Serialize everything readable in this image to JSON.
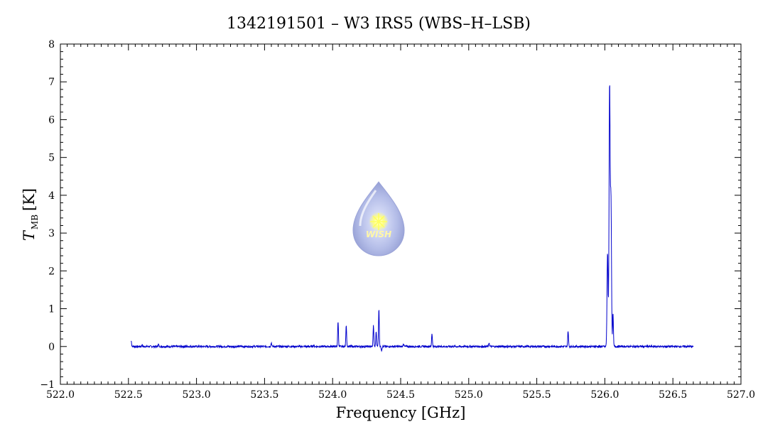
{
  "chart_data": {
    "type": "line",
    "title": "1342191501 – W3 IRS5 (WBS–H–LSB)",
    "xlabel": "Frequency [GHz]",
    "ylabel_main": "T",
    "ylabel_sub": "MB",
    "ylabel_unit": "[K]",
    "xlim": [
      522.0,
      527.0
    ],
    "ylim": [
      -1,
      8
    ],
    "xticks": [
      "522.0",
      "522.5",
      "523.0",
      "523.5",
      "524.0",
      "524.5",
      "525.0",
      "525.5",
      "526.0",
      "526.5",
      "527.0"
    ],
    "yticks": [
      "−1",
      "0",
      "1",
      "2",
      "3",
      "4",
      "5",
      "6",
      "7",
      "8"
    ],
    "grid": false,
    "line_color": "#0000cc",
    "series": [
      {
        "x_range": [
          522.52,
          526.65
        ],
        "baseline": 0.0,
        "peaks": [
          {
            "x": 522.52,
            "y": 0.15
          },
          {
            "x": 522.6,
            "y": 0.04
          },
          {
            "x": 522.72,
            "y": 0.06
          },
          {
            "x": 523.55,
            "y": 0.1
          },
          {
            "x": 523.86,
            "y": 0.03
          },
          {
            "x": 524.04,
            "y": 0.67
          },
          {
            "x": 524.1,
            "y": 0.58
          },
          {
            "x": 524.3,
            "y": 0.55
          },
          {
            "x": 524.32,
            "y": 0.4
          },
          {
            "x": 524.34,
            "y": 1.0
          },
          {
            "x": 524.36,
            "y": -0.1
          },
          {
            "x": 524.52,
            "y": 0.08
          },
          {
            "x": 524.73,
            "y": 0.35
          },
          {
            "x": 525.15,
            "y": 0.1
          },
          {
            "x": 525.73,
            "y": 0.42
          },
          {
            "x": 526.02,
            "y": 2.5
          },
          {
            "x": 526.035,
            "y": 6.9
          },
          {
            "x": 526.045,
            "y": 3.85
          },
          {
            "x": 526.06,
            "y": 0.9
          }
        ]
      }
    ]
  },
  "watermark": {
    "text": "WISH",
    "icon": "wish-drop-logo"
  }
}
